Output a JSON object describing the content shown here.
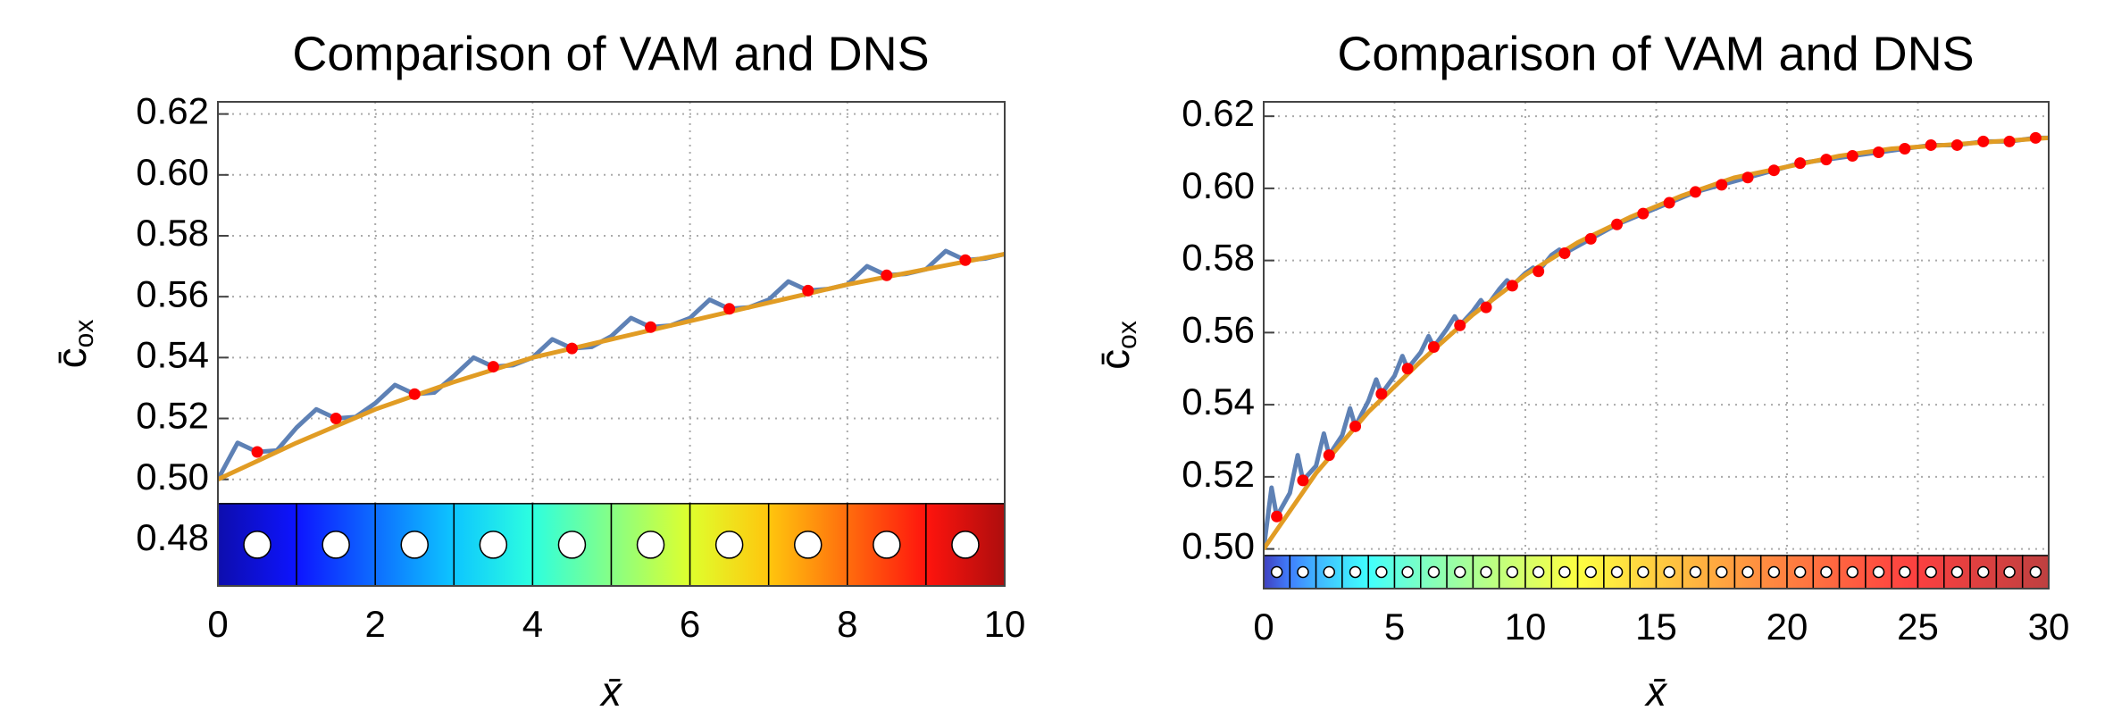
{
  "chart_data": [
    {
      "type": "line",
      "title": "Comparison of VAM and DNS",
      "x_label": "x̄",
      "y_label": "c̄",
      "y_label_sub": "ox",
      "xlim": [
        0,
        10
      ],
      "ylim": [
        0.465,
        0.624
      ],
      "xticks": [
        0,
        2,
        4,
        6,
        8,
        10
      ],
      "yticks": [
        0.48,
        {
          "value": 0.5,
          "label": "0.50"
        },
        0.52,
        0.54,
        0.56,
        0.58,
        {
          "value": 0.6,
          "label": "0.60"
        },
        0.62
      ],
      "grid": true,
      "series": [
        {
          "color": "#5e81b5",
          "style": "line",
          "x": [
            0,
            0.25,
            0.5,
            0.75,
            1,
            1.25,
            1.5,
            1.75,
            2,
            2.25,
            2.5,
            2.75,
            3,
            3.25,
            3.5,
            3.75,
            4,
            4.25,
            4.5,
            4.75,
            5,
            5.25,
            5.5,
            5.75,
            6,
            6.25,
            6.5,
            6.75,
            7,
            7.25,
            7.5,
            7.75,
            8,
            8.25,
            8.5,
            8.75,
            9,
            9.25,
            9.5,
            9.75,
            10
          ],
          "values": [
            0.5,
            0.512,
            0.509,
            0.5095,
            0.517,
            0.523,
            0.52,
            0.5205,
            0.525,
            0.531,
            0.528,
            0.5285,
            0.534,
            0.54,
            0.537,
            0.5375,
            0.54,
            0.546,
            0.543,
            0.5435,
            0.547,
            0.553,
            0.55,
            0.5505,
            0.553,
            0.559,
            0.556,
            0.5565,
            0.559,
            0.565,
            0.562,
            0.5625,
            0.564,
            0.57,
            0.567,
            0.5675,
            0.569,
            0.575,
            0.572,
            0.5725,
            0.574
          ]
        },
        {
          "color": "#e19c24",
          "style": "line",
          "x": [
            0,
            1,
            2,
            3,
            4,
            5,
            6,
            7,
            8,
            9,
            10
          ],
          "values": [
            0.5,
            0.512,
            0.523,
            0.532,
            0.54,
            0.546,
            0.552,
            0.558,
            0.564,
            0.569,
            0.574
          ]
        },
        {
          "color": "#ff0000",
          "style": "points",
          "x": [
            0.5,
            1.5,
            2.5,
            3.5,
            4.5,
            5.5,
            6.5,
            7.5,
            8.5,
            9.5
          ],
          "values": [
            0.509,
            0.52,
            0.528,
            0.537,
            0.543,
            0.55,
            0.556,
            0.562,
            0.567,
            0.572
          ]
        }
      ]
    },
    {
      "type": "line",
      "title": "Comparison of VAM and DNS",
      "x_label": "x̄",
      "y_label": "c̄",
      "y_label_sub": "ox",
      "xlim": [
        0,
        30
      ],
      "ylim": [
        0.489,
        0.624
      ],
      "xticks": [
        0,
        5,
        10,
        15,
        20,
        25,
        30
      ],
      "yticks": [
        {
          "value": 0.5,
          "label": "0.50"
        },
        0.52,
        0.54,
        0.56,
        0.58,
        {
          "value": 0.6,
          "label": "0.60"
        },
        0.62
      ],
      "grid": true,
      "series": [
        {
          "color": "#5e81b5",
          "style": "line",
          "x": [
            0,
            0.3,
            0.5,
            1,
            1.3,
            1.5,
            2,
            2.3,
            2.5,
            3,
            3.3,
            3.5,
            4,
            4.3,
            4.5,
            5,
            5.3,
            5.5,
            6,
            6.3,
            6.5,
            7,
            7.3,
            7.5,
            8,
            8.3,
            8.5,
            9,
            9.3,
            9.5,
            10,
            10.3,
            10.5,
            11,
            11.3,
            11.5,
            12.5,
            13.5,
            14.5,
            15.5,
            16.5,
            17.5,
            18.5,
            19.5,
            20.5,
            21.5,
            22.5,
            23.5,
            24.5,
            25.5,
            26.5,
            27.5,
            28.5,
            29.5,
            30
          ],
          "values": [
            0.5,
            0.517,
            0.509,
            0.5155,
            0.526,
            0.519,
            0.523,
            0.532,
            0.526,
            0.5315,
            0.539,
            0.534,
            0.541,
            0.547,
            0.543,
            0.548,
            0.5535,
            0.55,
            0.5545,
            0.559,
            0.556,
            0.561,
            0.5645,
            0.562,
            0.566,
            0.569,
            0.567,
            0.572,
            0.5745,
            0.573,
            0.5765,
            0.578,
            0.577,
            0.5815,
            0.583,
            0.582,
            0.586,
            0.59,
            0.593,
            0.596,
            0.599,
            0.601,
            0.603,
            0.605,
            0.607,
            0.608,
            0.609,
            0.61,
            0.611,
            0.612,
            0.612,
            0.613,
            0.613,
            0.614,
            0.614
          ]
        },
        {
          "color": "#e19c24",
          "style": "line",
          "x": [
            0,
            2,
            4,
            6,
            8,
            10,
            12,
            14,
            16,
            18,
            20,
            22,
            24,
            26,
            28,
            30
          ],
          "values": [
            0.5,
            0.521,
            0.538,
            0.552,
            0.565,
            0.576,
            0.585,
            0.592,
            0.598,
            0.603,
            0.606,
            0.609,
            0.611,
            0.612,
            0.613,
            0.614
          ]
        },
        {
          "color": "#ff0000",
          "style": "points",
          "x": [
            0.5,
            1.5,
            2.5,
            3.5,
            4.5,
            5.5,
            6.5,
            7.5,
            8.5,
            9.5,
            10.5,
            11.5,
            12.5,
            13.5,
            14.5,
            15.5,
            16.5,
            17.5,
            18.5,
            19.5,
            20.5,
            21.5,
            22.5,
            23.5,
            24.5,
            25.5,
            26.5,
            27.5,
            28.5,
            29.5
          ],
          "values": [
            0.509,
            0.519,
            0.526,
            0.534,
            0.543,
            0.55,
            0.556,
            0.562,
            0.567,
            0.573,
            0.577,
            0.582,
            0.586,
            0.59,
            0.593,
            0.596,
            0.599,
            0.601,
            0.603,
            0.605,
            0.607,
            0.608,
            0.609,
            0.61,
            0.611,
            0.612,
            0.612,
            0.613,
            0.613,
            0.614
          ]
        }
      ]
    }
  ]
}
